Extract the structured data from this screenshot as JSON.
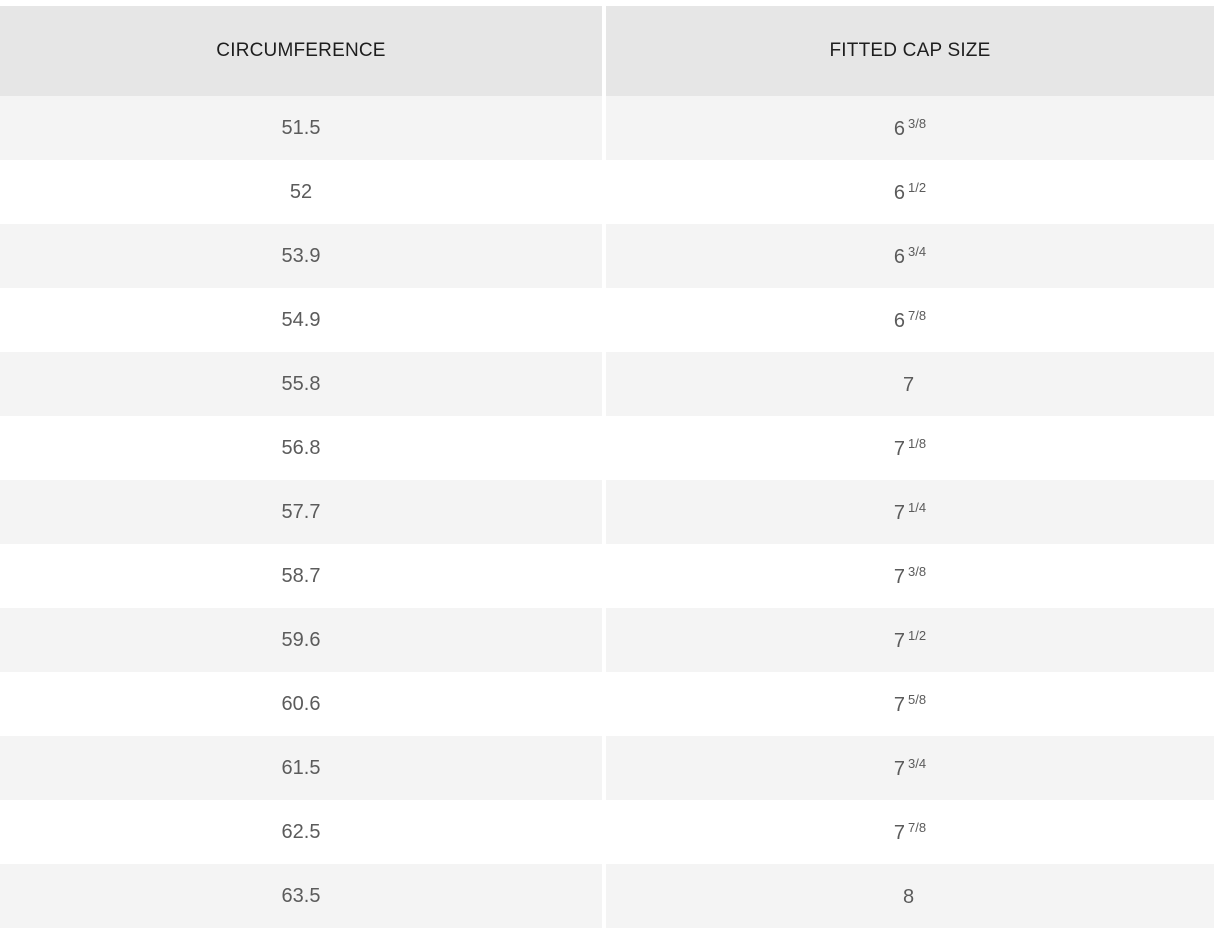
{
  "table": {
    "headers": {
      "circumference": "CIRCUMFERENCE",
      "fitted_cap_size": "FITTED CAP SIZE"
    },
    "rows": [
      {
        "circumference": "51.5",
        "whole": "6",
        "fraction": "3/8"
      },
      {
        "circumference": "52",
        "whole": "6",
        "fraction": "1/2"
      },
      {
        "circumference": "53.9",
        "whole": "6",
        "fraction": "3/4"
      },
      {
        "circumference": "54.9",
        "whole": "6",
        "fraction": "7/8"
      },
      {
        "circumference": "55.8",
        "whole": "7",
        "fraction": ""
      },
      {
        "circumference": "56.8",
        "whole": "7",
        "fraction": "1/8"
      },
      {
        "circumference": "57.7",
        "whole": "7",
        "fraction": "1/4"
      },
      {
        "circumference": "58.7",
        "whole": "7",
        "fraction": "3/8"
      },
      {
        "circumference": "59.6",
        "whole": "7",
        "fraction": "1/2"
      },
      {
        "circumference": "60.6",
        "whole": "7",
        "fraction": "5/8"
      },
      {
        "circumference": "61.5",
        "whole": "7",
        "fraction": "3/4"
      },
      {
        "circumference": "62.5",
        "whole": "7",
        "fraction": "7/8"
      },
      {
        "circumference": "63.5",
        "whole": "8",
        "fraction": ""
      }
    ]
  }
}
